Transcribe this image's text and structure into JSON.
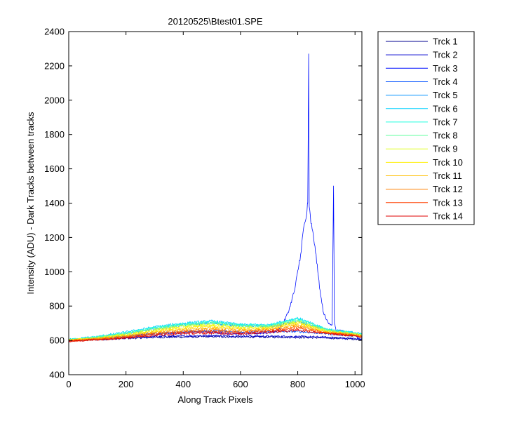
{
  "chart_data": {
    "type": "line",
    "title": "20120525\\Btest01.SPE",
    "xlabel": "Along Track Pixels",
    "ylabel": "Intensity (ADU) - Dark Tracks between tracks",
    "xlim": [
      0,
      1024
    ],
    "ylim": [
      400,
      2400
    ],
    "xticks": [
      0,
      200,
      400,
      600,
      800,
      1000
    ],
    "yticks": [
      400,
      600,
      800,
      1000,
      1200,
      1400,
      1600,
      1800,
      2000,
      2200,
      2400
    ],
    "grid": false,
    "legend_position": "outside-right",
    "series": [
      {
        "name": "Trck 1",
        "color": "#00008f",
        "x": [
          0,
          100,
          200,
          300,
          400,
          500,
          600,
          700,
          800,
          900,
          1000,
          1024
        ],
        "y": [
          600,
          605,
          612,
          618,
          620,
          622,
          620,
          620,
          618,
          615,
          608,
          605
        ]
      },
      {
        "name": "Trck 2",
        "color": "#0000cf",
        "x": [
          0,
          100,
          200,
          300,
          400,
          500,
          600,
          700,
          800,
          900,
          1000,
          1024
        ],
        "y": [
          600,
          606,
          614,
          622,
          626,
          628,
          625,
          624,
          622,
          618,
          610,
          606
        ]
      },
      {
        "name": "Trck 3",
        "color": "#0010ff",
        "x": [
          0,
          50,
          100,
          150,
          200,
          250,
          300,
          350,
          400,
          450,
          500,
          550,
          600,
          650,
          700,
          730,
          750,
          770,
          790,
          810,
          820,
          830,
          835,
          838,
          840,
          845,
          850,
          860,
          870,
          880,
          890,
          900,
          910,
          920,
          925,
          928,
          931,
          935,
          950,
          970,
          1000,
          1024
        ],
        "y": [
          595,
          605,
          610,
          620,
          625,
          630,
          640,
          640,
          645,
          650,
          650,
          640,
          640,
          640,
          645,
          655,
          700,
          780,
          900,
          1100,
          1250,
          1320,
          1400,
          2270,
          1380,
          1300,
          1250,
          1150,
          1000,
          860,
          760,
          720,
          700,
          690,
          1500,
          700,
          680,
          650,
          660,
          640,
          625,
          620
        ]
      },
      {
        "name": "Trck 4",
        "color": "#0050ff",
        "x": [
          0,
          100,
          200,
          300,
          400,
          500,
          600,
          700,
          800,
          900,
          1000,
          1024
        ],
        "y": [
          600,
          612,
          625,
          640,
          650,
          655,
          650,
          650,
          652,
          640,
          625,
          620
        ]
      },
      {
        "name": "Trck 5",
        "color": "#0090ff",
        "x": [
          0,
          100,
          200,
          300,
          400,
          500,
          600,
          700,
          800,
          900,
          1000,
          1024
        ],
        "y": [
          602,
          618,
          640,
          665,
          690,
          700,
          685,
          680,
          710,
          660,
          640,
          630
        ]
      },
      {
        "name": "Trck 6",
        "color": "#00d0ff",
        "x": [
          0,
          100,
          200,
          300,
          400,
          500,
          600,
          700,
          800,
          900,
          1000,
          1024
        ],
        "y": [
          605,
          622,
          648,
          678,
          700,
          712,
          692,
          690,
          730,
          665,
          645,
          635
        ]
      },
      {
        "name": "Trck 7",
        "color": "#20ffdf",
        "x": [
          0,
          100,
          200,
          300,
          400,
          500,
          600,
          700,
          800,
          900,
          1000,
          1024
        ],
        "y": [
          604,
          620,
          645,
          673,
          696,
          708,
          690,
          688,
          726,
          663,
          643,
          633
        ]
      },
      {
        "name": "Trck 8",
        "color": "#60ff9f",
        "x": [
          0,
          100,
          200,
          300,
          400,
          500,
          600,
          700,
          800,
          900,
          1000,
          1024
        ],
        "y": [
          603,
          618,
          640,
          668,
          690,
          702,
          686,
          684,
          720,
          660,
          641,
          631
        ]
      },
      {
        "name": "Trck 9",
        "color": "#dfff20",
        "x": [
          0,
          100,
          200,
          300,
          400,
          500,
          600,
          700,
          800,
          900,
          1000,
          1024
        ],
        "y": [
          602,
          615,
          635,
          662,
          682,
          692,
          678,
          678,
          710,
          656,
          638,
          630
        ]
      },
      {
        "name": "Trck 10",
        "color": "#ffef00",
        "x": [
          0,
          100,
          200,
          300,
          400,
          500,
          600,
          700,
          800,
          900,
          1000,
          1024
        ],
        "y": [
          601,
          612,
          630,
          655,
          674,
          683,
          670,
          672,
          700,
          652,
          635,
          628
        ]
      },
      {
        "name": "Trck 11",
        "color": "#ffbf00",
        "x": [
          0,
          100,
          200,
          300,
          400,
          500,
          600,
          700,
          800,
          900,
          1000,
          1024
        ],
        "y": [
          600,
          610,
          626,
          648,
          665,
          673,
          662,
          666,
          690,
          648,
          632,
          625
        ]
      },
      {
        "name": "Trck 12",
        "color": "#ff8000",
        "x": [
          0,
          100,
          200,
          300,
          400,
          500,
          600,
          700,
          800,
          900,
          1000,
          1024
        ],
        "y": [
          598,
          608,
          622,
          642,
          656,
          662,
          654,
          660,
          680,
          645,
          630,
          623
        ]
      },
      {
        "name": "Trck 13",
        "color": "#ff4000",
        "x": [
          0,
          100,
          200,
          300,
          400,
          500,
          600,
          700,
          800,
          900,
          1000,
          1024
        ],
        "y": [
          597,
          606,
          618,
          636,
          648,
          652,
          646,
          654,
          670,
          642,
          628,
          620
        ]
      },
      {
        "name": "Trck 14",
        "color": "#df0000",
        "x": [
          0,
          100,
          200,
          300,
          400,
          500,
          600,
          700,
          800,
          900,
          1000,
          1024
        ],
        "y": [
          596,
          604,
          615,
          630,
          640,
          643,
          638,
          648,
          660,
          640,
          626,
          618
        ]
      }
    ]
  }
}
